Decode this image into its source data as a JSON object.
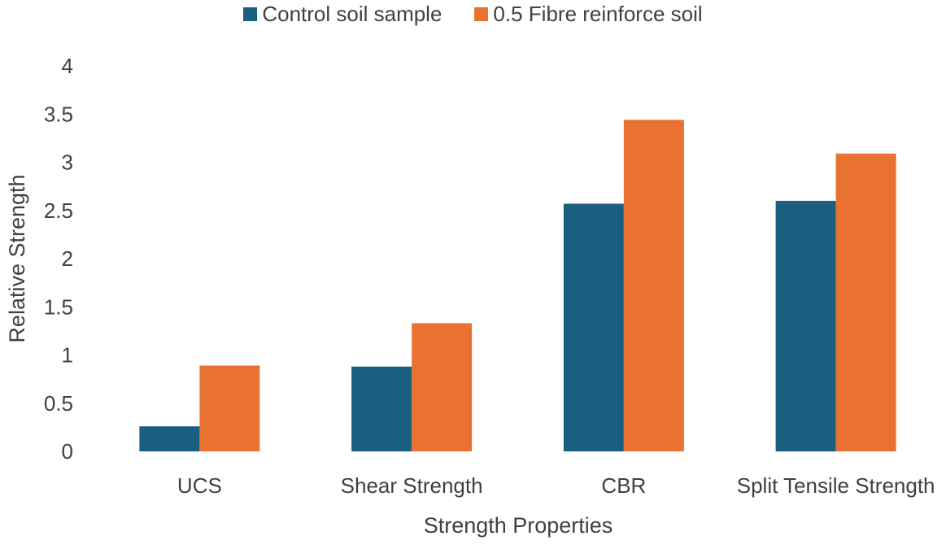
{
  "chart_data": {
    "type": "bar",
    "title": "",
    "xlabel": "Strength Properties",
    "ylabel": "Relative Strength",
    "categories": [
      "UCS",
      "Shear Strength",
      "CBR",
      "Split Tensile Strength"
    ],
    "series": [
      {
        "name": "Control soil sample",
        "color": "#1a5f7f",
        "values": [
          0.26,
          0.88,
          2.57,
          2.6
        ]
      },
      {
        "name": "0.5 Fibre reinforce soil",
        "color": "#e97132",
        "values": [
          0.89,
          1.33,
          3.44,
          3.09
        ]
      }
    ],
    "ylim": [
      0,
      4
    ],
    "yticks": [
      "0",
      "0.5",
      "1",
      "1.5",
      "2",
      "2.5",
      "3",
      "3.5",
      "4"
    ],
    "grid": false,
    "legend_position": "top-center"
  }
}
